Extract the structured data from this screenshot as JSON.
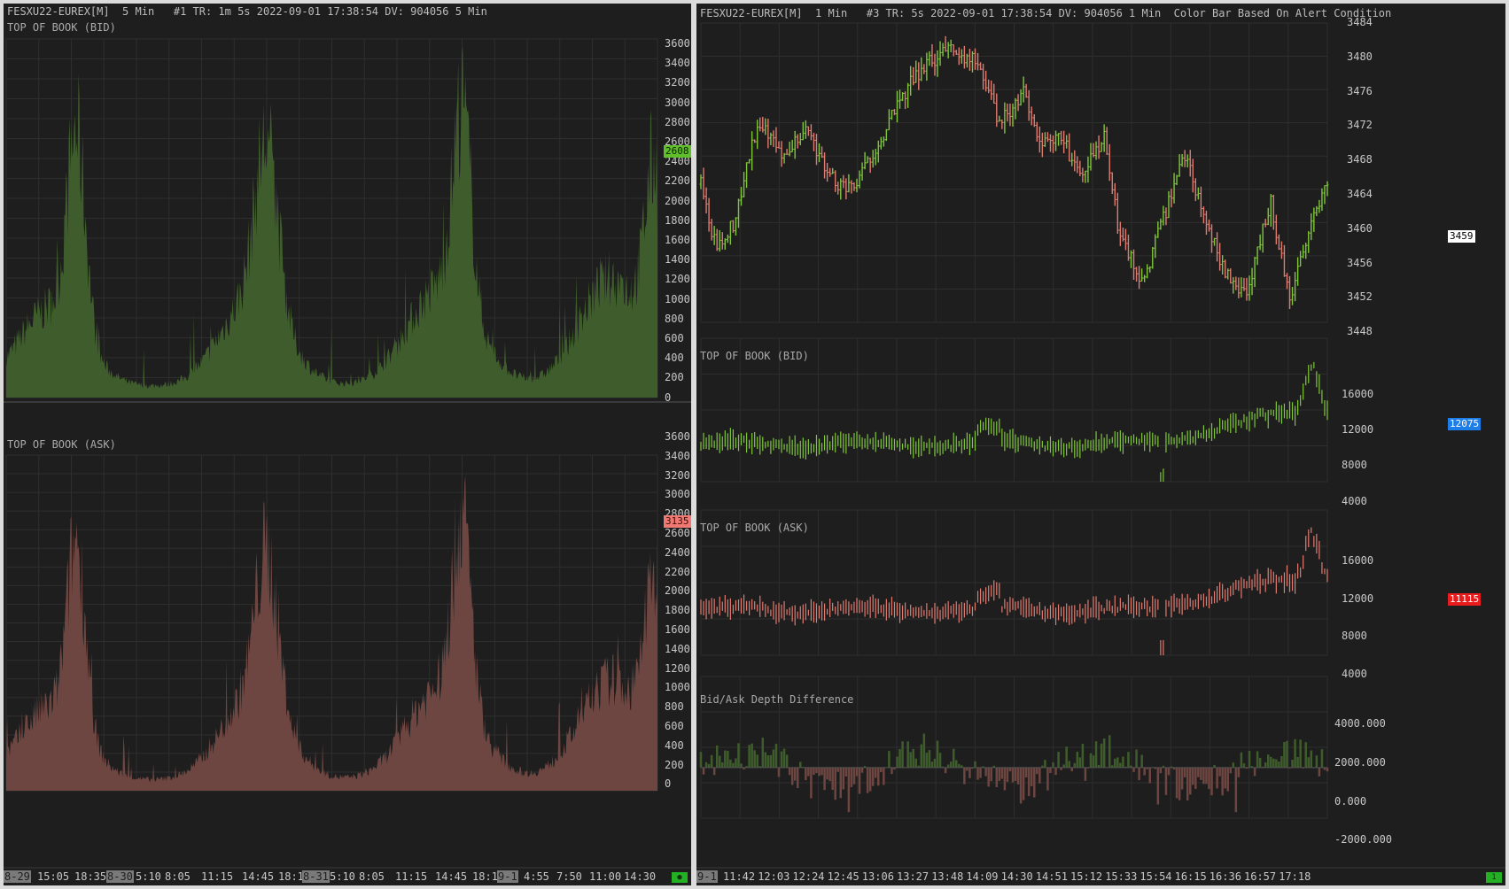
{
  "colors": {
    "background": "#1e1e1e",
    "bid_fill": "#3f5d2c",
    "ask_fill": "#6e4641",
    "up_bar": "#7fc63a",
    "down_bar": "#e07b70",
    "grid": "#2e2e2e",
    "bid_tag": "#5fbf2b",
    "ask_tag": "#f07a73",
    "blue_tag": "#1e7ee8",
    "red_tag": "#e81c1c"
  },
  "left": {
    "header": "FESXU22-EUREX[M]  5 Min   #1 TR: 1m 5s 2022-09-01 17:38:54 DV: 904056 5 Min",
    "bid_panel": {
      "title": "TOP OF BOOK (BID)",
      "ticks": [
        "3600",
        "3400",
        "3200",
        "3000",
        "2800",
        "2600",
        "2400",
        "2200",
        "2000",
        "1800",
        "1600",
        "1400",
        "1200",
        "1000",
        "800",
        "600",
        "400",
        "200",
        "0"
      ],
      "last_value": "2608"
    },
    "ask_panel": {
      "title": "TOP OF BOOK (ASK)",
      "ticks": [
        "3600",
        "3400",
        "3200",
        "3000",
        "2800",
        "2600",
        "2400",
        "2200",
        "2000",
        "1800",
        "1600",
        "1400",
        "1200",
        "1000",
        "800",
        "600",
        "400",
        "200",
        "0"
      ],
      "last_value": "3135"
    },
    "time_labels": [
      {
        "text": "8-29",
        "boxed": true
      },
      {
        "text": "15:05",
        "boxed": false
      },
      {
        "text": "18:35",
        "boxed": false
      },
      {
        "text": "8-30",
        "boxed": true
      },
      {
        "text": "5:10",
        "boxed": false
      },
      {
        "text": "8:05",
        "boxed": false
      },
      {
        "text": "11:15",
        "boxed": false
      },
      {
        "text": "14:45",
        "boxed": false
      },
      {
        "text": "18:15",
        "boxed": false
      },
      {
        "text": "8-31",
        "boxed": true
      },
      {
        "text": "5:10",
        "boxed": false
      },
      {
        "text": "8:05",
        "boxed": false
      },
      {
        "text": "11:15",
        "boxed": false
      },
      {
        "text": "14:45",
        "boxed": false
      },
      {
        "text": "18:15",
        "boxed": false
      },
      {
        "text": "9-1",
        "boxed": true
      },
      {
        "text": "4:55",
        "boxed": false
      },
      {
        "text": "7:50",
        "boxed": false
      },
      {
        "text": "11:00",
        "boxed": false
      },
      {
        "text": "14:30",
        "boxed": false
      }
    ]
  },
  "right": {
    "header": "FESXU22-EUREX[M]  1 Min   #3 TR: 5s 2022-09-01 17:38:54 DV: 904056 1 Min  Color Bar Based On Alert Condition",
    "price_panel": {
      "ticks": [
        "3484",
        "3480",
        "3476",
        "3472",
        "3468",
        "3464",
        "3460",
        "3456",
        "3452",
        "3448"
      ],
      "last_value": "3459"
    },
    "bid_panel": {
      "title": "TOP OF BOOK (BID)",
      "ticks": [
        "16000",
        "12000",
        "8000",
        "4000"
      ],
      "last_value": "12075"
    },
    "ask_panel": {
      "title": "TOP OF BOOK (ASK)",
      "ticks": [
        "16000",
        "12000",
        "8000",
        "4000"
      ],
      "last_value": "11115"
    },
    "diff_panel": {
      "title": "Bid/Ask Depth Difference",
      "ticks": [
        "4000.000",
        "2000.000",
        "0.000",
        "-2000.000"
      ]
    },
    "time_labels": [
      {
        "text": "9-1",
        "boxed": true
      },
      {
        "text": "11:42",
        "boxed": false
      },
      {
        "text": "12:03",
        "boxed": false
      },
      {
        "text": "12:24",
        "boxed": false
      },
      {
        "text": "12:45",
        "boxed": false
      },
      {
        "text": "13:06",
        "boxed": false
      },
      {
        "text": "13:27",
        "boxed": false
      },
      {
        "text": "13:48",
        "boxed": false
      },
      {
        "text": "14:09",
        "boxed": false
      },
      {
        "text": "14:30",
        "boxed": false
      },
      {
        "text": "14:51",
        "boxed": false
      },
      {
        "text": "15:12",
        "boxed": false
      },
      {
        "text": "15:33",
        "boxed": false
      },
      {
        "text": "15:54",
        "boxed": false
      },
      {
        "text": "16:15",
        "boxed": false
      },
      {
        "text": "16:36",
        "boxed": false
      },
      {
        "text": "16:57",
        "boxed": false
      },
      {
        "text": "17:18",
        "boxed": false
      }
    ]
  },
  "status_dot_left": "●",
  "status_dot_right": "1"
}
